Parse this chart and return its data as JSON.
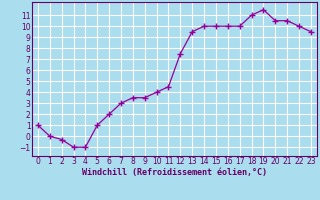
{
  "x": [
    0,
    1,
    2,
    3,
    4,
    5,
    6,
    7,
    8,
    9,
    10,
    11,
    12,
    13,
    14,
    15,
    16,
    17,
    18,
    19,
    20,
    21,
    22,
    23
  ],
  "y": [
    1,
    0,
    -0.3,
    -1,
    -1,
    1,
    2,
    3,
    3.5,
    3.5,
    4,
    4.5,
    7.5,
    9.5,
    10,
    10,
    10,
    10,
    11,
    11.5,
    10.5,
    10.5,
    10,
    9.5
  ],
  "line_color": "#990099",
  "marker": "+",
  "background_color": "#aaddee",
  "grid_color": "#ffffff",
  "xlabel": "Windchill (Refroidissement éolien,°C)",
  "xlabel_fontsize": 6,
  "xlabel_color": "#660066",
  "tick_color": "#660066",
  "ylim": [
    -1.8,
    12.2
  ],
  "xlim": [
    -0.5,
    23.5
  ],
  "yticks": [
    -1,
    0,
    1,
    2,
    3,
    4,
    5,
    6,
    7,
    8,
    9,
    10,
    11
  ],
  "xticks": [
    0,
    1,
    2,
    3,
    4,
    5,
    6,
    7,
    8,
    9,
    10,
    11,
    12,
    13,
    14,
    15,
    16,
    17,
    18,
    19,
    20,
    21,
    22,
    23
  ],
  "spine_color": "#660066",
  "tick_fontsize": 5.5
}
